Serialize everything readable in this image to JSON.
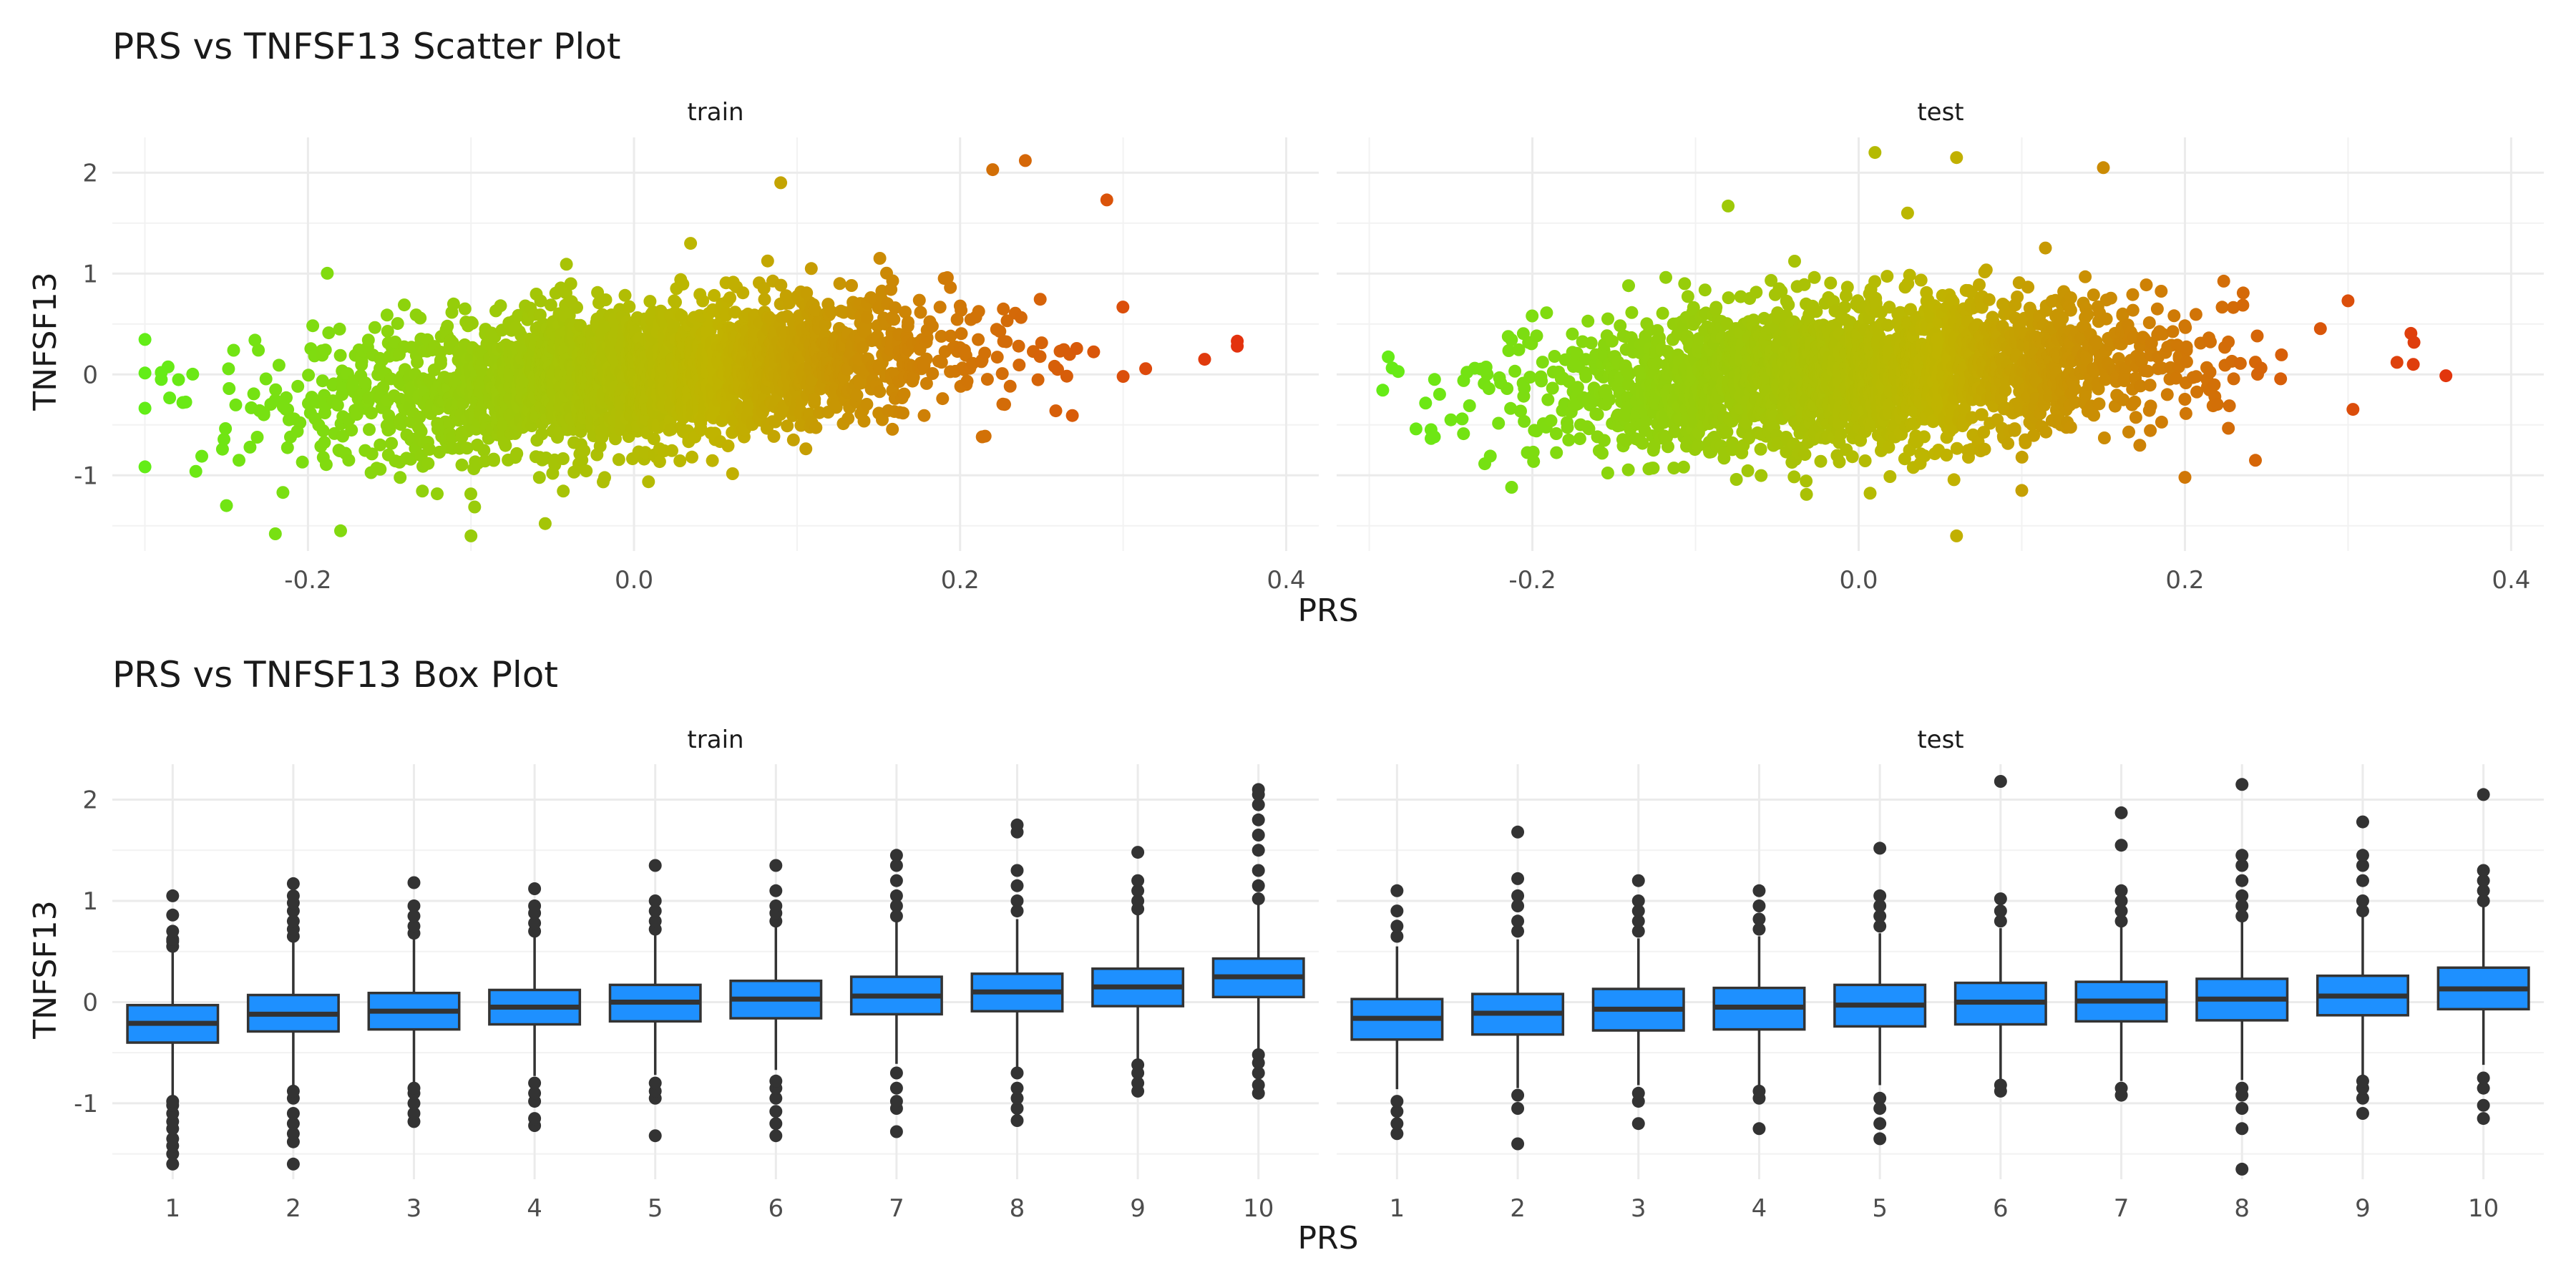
{
  "chart_data": [
    {
      "type": "scatter",
      "title": "PRS vs TNFSF13 Scatter Plot",
      "xlabel": "PRS",
      "ylabel": "TNFSF13",
      "facets": [
        "train",
        "test"
      ],
      "xlim": [
        -0.32,
        0.42
      ],
      "ylim": [
        -1.75,
        2.35
      ],
      "x_ticks": [
        -0.2,
        0.0,
        0.2,
        0.4
      ],
      "x_tick_labels": [
        "-0.2",
        "0.0",
        "0.2",
        "0.4"
      ],
      "y_ticks": [
        -1,
        0,
        1,
        2
      ],
      "y_tick_labels": [
        "-1",
        "0",
        "1",
        "2"
      ],
      "color_scale": {
        "low": "#5ef018",
        "mid": "#c0b400",
        "high": "#e81e10",
        "mapped_to": "PRS"
      },
      "trend": {
        "train": {
          "slope": 1.3,
          "intercept": 0.0,
          "sd": 0.35
        },
        "test": {
          "slope": 0.85,
          "intercept": 0.0,
          "sd": 0.35
        }
      },
      "grid": true,
      "legend": "none",
      "highlight_points": {
        "train": [
          [
            -0.29,
            -0.05
          ],
          [
            -0.29,
            0.02
          ],
          [
            -0.22,
            -1.58
          ],
          [
            -0.18,
            -1.55
          ],
          [
            -0.1,
            -1.6
          ],
          [
            0.09,
            1.9
          ],
          [
            0.22,
            2.03
          ],
          [
            0.24,
            2.12
          ],
          [
            0.29,
            1.73
          ],
          [
            0.37,
            0.28
          ],
          [
            0.37,
            0.33
          ],
          [
            0.35,
            0.15
          ],
          [
            0.3,
            -0.02
          ],
          [
            -0.25,
            -1.3
          ]
        ],
        "test": [
          [
            -0.26,
            -0.05
          ],
          [
            -0.25,
            -0.45
          ],
          [
            0.01,
            2.2
          ],
          [
            0.06,
            2.15
          ],
          [
            0.15,
            2.05
          ],
          [
            0.03,
            1.6
          ],
          [
            0.06,
            -1.6
          ],
          [
            0.1,
            -1.15
          ],
          [
            0.2,
            -1.02
          ],
          [
            0.33,
            0.12
          ],
          [
            0.34,
            0.1
          ],
          [
            0.3,
            0.73
          ],
          [
            -0.08,
            1.67
          ]
        ]
      }
    },
    {
      "type": "box",
      "title": "PRS vs TNFSF13 Box Plot",
      "xlabel": "PRS",
      "ylabel": "TNFSF13",
      "facets": [
        "train",
        "test"
      ],
      "categories": [
        "1",
        "2",
        "3",
        "4",
        "5",
        "6",
        "7",
        "8",
        "9",
        "10"
      ],
      "ylim": [
        -1.75,
        2.35
      ],
      "y_ticks": [
        -1,
        0,
        1,
        2
      ],
      "y_tick_labels": [
        "-1",
        "0",
        "1",
        "2"
      ],
      "fill": "#1e90ff",
      "grid": true,
      "series": [
        {
          "name": "train",
          "q1": [
            -0.4,
            -0.29,
            -0.27,
            -0.22,
            -0.19,
            -0.16,
            -0.12,
            -0.09,
            -0.04,
            0.05
          ],
          "median": [
            -0.21,
            -0.12,
            -0.09,
            -0.05,
            0.0,
            0.03,
            0.06,
            0.1,
            0.15,
            0.25
          ],
          "q3": [
            -0.03,
            0.07,
            0.09,
            0.12,
            0.17,
            0.21,
            0.25,
            0.28,
            0.33,
            0.43
          ],
          "whisker_low": [
            -0.94,
            -0.84,
            -0.8,
            -0.73,
            -0.72,
            -0.67,
            -0.61,
            -0.64,
            -0.59,
            -0.5
          ],
          "whisker_high": [
            0.5,
            0.6,
            0.62,
            0.64,
            0.69,
            0.75,
            0.79,
            0.82,
            0.88,
            0.98
          ],
          "outliers": [
            [
              -1.6,
              -1.5,
              -1.42,
              -1.35,
              -1.25,
              -1.18,
              -1.1,
              -1.02,
              -0.98,
              0.55,
              0.6,
              0.62,
              0.7,
              0.86,
              1.05
            ],
            [
              -1.6,
              -1.38,
              -1.3,
              -1.2,
              -1.1,
              -0.95,
              -0.88,
              0.65,
              0.72,
              0.8,
              0.9,
              0.98,
              1.05,
              1.17
            ],
            [
              -1.18,
              -1.1,
              -1.0,
              -0.9,
              -0.85,
              0.68,
              0.75,
              0.85,
              0.95,
              1.18
            ],
            [
              -1.22,
              -1.15,
              -0.98,
              -0.9,
              -0.8,
              0.7,
              0.78,
              0.88,
              0.95,
              1.12
            ],
            [
              -1.32,
              -0.95,
              -0.88,
              -0.8,
              0.72,
              0.8,
              0.9,
              1.0,
              1.35
            ],
            [
              -1.32,
              -1.2,
              -1.08,
              -0.95,
              -0.85,
              -0.78,
              0.8,
              0.88,
              0.95,
              1.1,
              1.35
            ],
            [
              -1.28,
              -1.05,
              -0.98,
              -0.85,
              -0.7,
              0.85,
              0.95,
              1.05,
              1.2,
              1.35,
              1.45
            ],
            [
              -1.17,
              -1.05,
              -0.95,
              -0.85,
              -0.7,
              0.9,
              1.0,
              1.15,
              1.3,
              1.68,
              1.75
            ],
            [
              -0.88,
              -0.8,
              -0.7,
              -0.62,
              0.92,
              1.0,
              1.1,
              1.2,
              1.48
            ],
            [
              -0.9,
              -0.82,
              -0.7,
              -0.6,
              -0.52,
              1.02,
              1.15,
              1.3,
              1.5,
              1.65,
              1.8,
              1.95,
              2.05,
              2.1
            ]
          ]
        },
        {
          "name": "test",
          "q1": [
            -0.37,
            -0.32,
            -0.28,
            -0.27,
            -0.24,
            -0.22,
            -0.19,
            -0.18,
            -0.13,
            -0.07
          ],
          "median": [
            -0.16,
            -0.11,
            -0.07,
            -0.05,
            -0.03,
            0.0,
            0.01,
            0.03,
            0.06,
            0.13
          ],
          "q3": [
            0.03,
            0.08,
            0.13,
            0.14,
            0.17,
            0.19,
            0.2,
            0.23,
            0.26,
            0.34
          ],
          "whisker_low": [
            -0.86,
            -0.85,
            -0.82,
            -0.85,
            -0.82,
            -0.79,
            -0.78,
            -0.77,
            -0.72,
            -0.62
          ],
          "whisker_high": [
            0.55,
            0.62,
            0.63,
            0.65,
            0.68,
            0.73,
            0.75,
            0.8,
            0.85,
            0.95
          ],
          "outliers": [
            [
              -1.3,
              -1.2,
              -1.08,
              -0.98,
              0.65,
              0.75,
              0.9,
              1.1
            ],
            [
              -1.4,
              -1.05,
              -0.92,
              0.7,
              0.8,
              0.95,
              1.05,
              1.22,
              1.68
            ],
            [
              -1.2,
              -0.98,
              -0.9,
              0.7,
              0.8,
              0.9,
              1.0,
              1.2
            ],
            [
              -1.25,
              -0.95,
              -0.88,
              0.72,
              0.82,
              0.95,
              1.1
            ],
            [
              -1.35,
              -1.2,
              -1.05,
              -0.95,
              0.75,
              0.85,
              0.95,
              1.05,
              1.52
            ],
            [
              -0.88,
              -0.82,
              0.8,
              0.9,
              1.02,
              2.18
            ],
            [
              -0.92,
              -0.85,
              0.8,
              0.9,
              1.0,
              1.1,
              1.55,
              1.87
            ],
            [
              -1.65,
              -1.25,
              -1.05,
              -0.92,
              -0.85,
              0.85,
              0.95,
              1.05,
              1.2,
              1.35,
              1.45,
              2.15
            ],
            [
              -1.1,
              -0.95,
              -0.85,
              -0.78,
              0.9,
              1.0,
              1.2,
              1.35,
              1.45,
              1.78
            ],
            [
              -1.15,
              -1.02,
              -0.85,
              -0.75,
              1.0,
              1.1,
              1.2,
              1.3,
              2.05
            ]
          ]
        }
      ]
    }
  ]
}
